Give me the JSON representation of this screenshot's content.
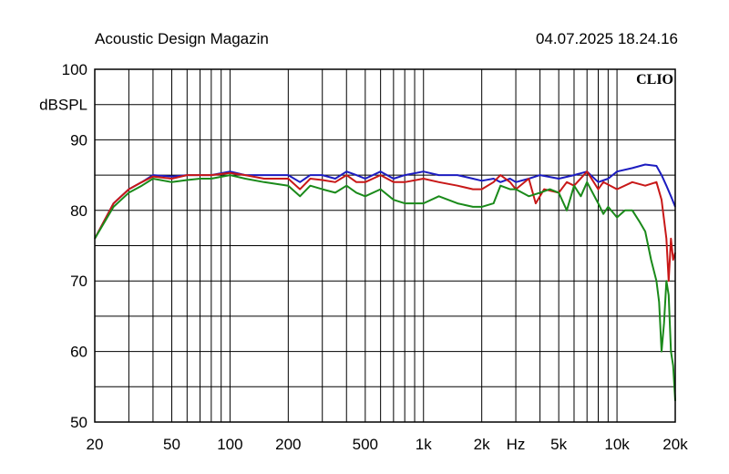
{
  "header": {
    "title": "Acoustic Design Magazin",
    "timestamp": "04.07.2025 18.24.16"
  },
  "chart_data": {
    "type": "line",
    "brand": "CLIO",
    "ylabel": "dBSPL",
    "xlabel": "Hz",
    "x_scale": "log",
    "xlim": [
      20,
      20000
    ],
    "ylim": [
      50,
      100
    ],
    "grid": true,
    "y_ticks": [
      {
        "value": 100,
        "label": "100"
      },
      {
        "value": 90,
        "label": "90"
      },
      {
        "value": 80,
        "label": "80"
      },
      {
        "value": 70,
        "label": "70"
      },
      {
        "value": 60,
        "label": "60"
      },
      {
        "value": 50,
        "label": "50"
      }
    ],
    "x_ticks": [
      {
        "value": 20,
        "label": "20"
      },
      {
        "value": 50,
        "label": "50"
      },
      {
        "value": 100,
        "label": "100"
      },
      {
        "value": 200,
        "label": "200"
      },
      {
        "value": 500,
        "label": "500"
      },
      {
        "value": 1000,
        "label": "1k"
      },
      {
        "value": 2000,
        "label": "2k"
      },
      {
        "value": 5000,
        "label": "5k"
      },
      {
        "value": 10000,
        "label": "10k"
      },
      {
        "value": 20000,
        "label": "20k"
      }
    ],
    "series": [
      {
        "color": "#1c1cc0",
        "x": [
          20,
          25,
          30,
          35,
          40,
          50,
          60,
          70,
          80,
          100,
          120,
          150,
          200,
          230,
          260,
          300,
          350,
          400,
          450,
          500,
          600,
          700,
          800,
          1000,
          1200,
          1500,
          1800,
          2000,
          2300,
          2500,
          2800,
          3000,
          3500,
          4000,
          5000,
          6000,
          7000,
          8000,
          9000,
          10000,
          12000,
          14000,
          16000,
          17000,
          18000,
          19000,
          20000
        ],
        "y": [
          76,
          81,
          83,
          84,
          85,
          84.8,
          85,
          85,
          85,
          85.5,
          85,
          85,
          85,
          84,
          85,
          85,
          84.5,
          85.5,
          85,
          84.5,
          85.5,
          84.5,
          85,
          85.5,
          85,
          85,
          84.5,
          84.2,
          84.5,
          84,
          84.5,
          84,
          84.5,
          85,
          84.5,
          85,
          85.5,
          84,
          84.5,
          85.5,
          86,
          86.5,
          86.3,
          85,
          83.5,
          82,
          80.5
        ]
      },
      {
        "color": "#c81818",
        "x": [
          20,
          25,
          30,
          35,
          40,
          50,
          60,
          70,
          80,
          100,
          120,
          150,
          200,
          230,
          260,
          300,
          350,
          400,
          450,
          500,
          600,
          700,
          800,
          1000,
          1200,
          1500,
          1800,
          2000,
          2300,
          2500,
          2800,
          3000,
          3500,
          3800,
          4200,
          5000,
          5500,
          6000,
          7000,
          8000,
          8500,
          10000,
          12000,
          14000,
          16000,
          17000,
          18000,
          18500,
          19000,
          19500,
          20000
        ],
        "y": [
          76,
          81,
          83,
          84,
          84.8,
          84.5,
          85,
          85,
          85,
          85.3,
          85,
          84.5,
          84.5,
          83,
          84.5,
          84.3,
          84,
          85,
          84,
          84,
          85,
          84,
          84,
          84.5,
          84,
          83.5,
          83,
          83,
          84,
          85,
          84,
          83,
          84.5,
          81,
          83,
          82.5,
          84,
          83.5,
          85.5,
          83,
          84,
          83,
          84,
          83.5,
          84,
          81.5,
          76,
          70,
          76,
          73,
          74
        ]
      },
      {
        "color": "#1a8a1a",
        "x": [
          20,
          25,
          30,
          35,
          40,
          50,
          60,
          70,
          80,
          100,
          120,
          150,
          200,
          230,
          260,
          300,
          350,
          400,
          450,
          500,
          600,
          700,
          800,
          1000,
          1200,
          1500,
          1800,
          2000,
          2300,
          2500,
          2800,
          3000,
          3500,
          4000,
          4500,
          5000,
          5500,
          6000,
          6500,
          7000,
          8000,
          8500,
          9000,
          10000,
          11000,
          12000,
          13000,
          14000,
          15000,
          16000,
          16500,
          17000,
          17500,
          18000,
          18500,
          19000,
          19500,
          20000
        ],
        "y": [
          76,
          80.5,
          82.5,
          83.5,
          84.5,
          84,
          84.3,
          84.5,
          84.5,
          85,
          84.5,
          84,
          83.5,
          82,
          83.5,
          83,
          82.5,
          83.5,
          82.5,
          82,
          83,
          81.5,
          81,
          81,
          82,
          81,
          80.5,
          80.5,
          81,
          83.5,
          83,
          83,
          82,
          82.5,
          83,
          82.5,
          80,
          83.5,
          82,
          84,
          81,
          79.5,
          80.5,
          79,
          80,
          80,
          78.5,
          77,
          73,
          70,
          67,
          60,
          64,
          70,
          68,
          60,
          58,
          53
        ]
      }
    ]
  }
}
